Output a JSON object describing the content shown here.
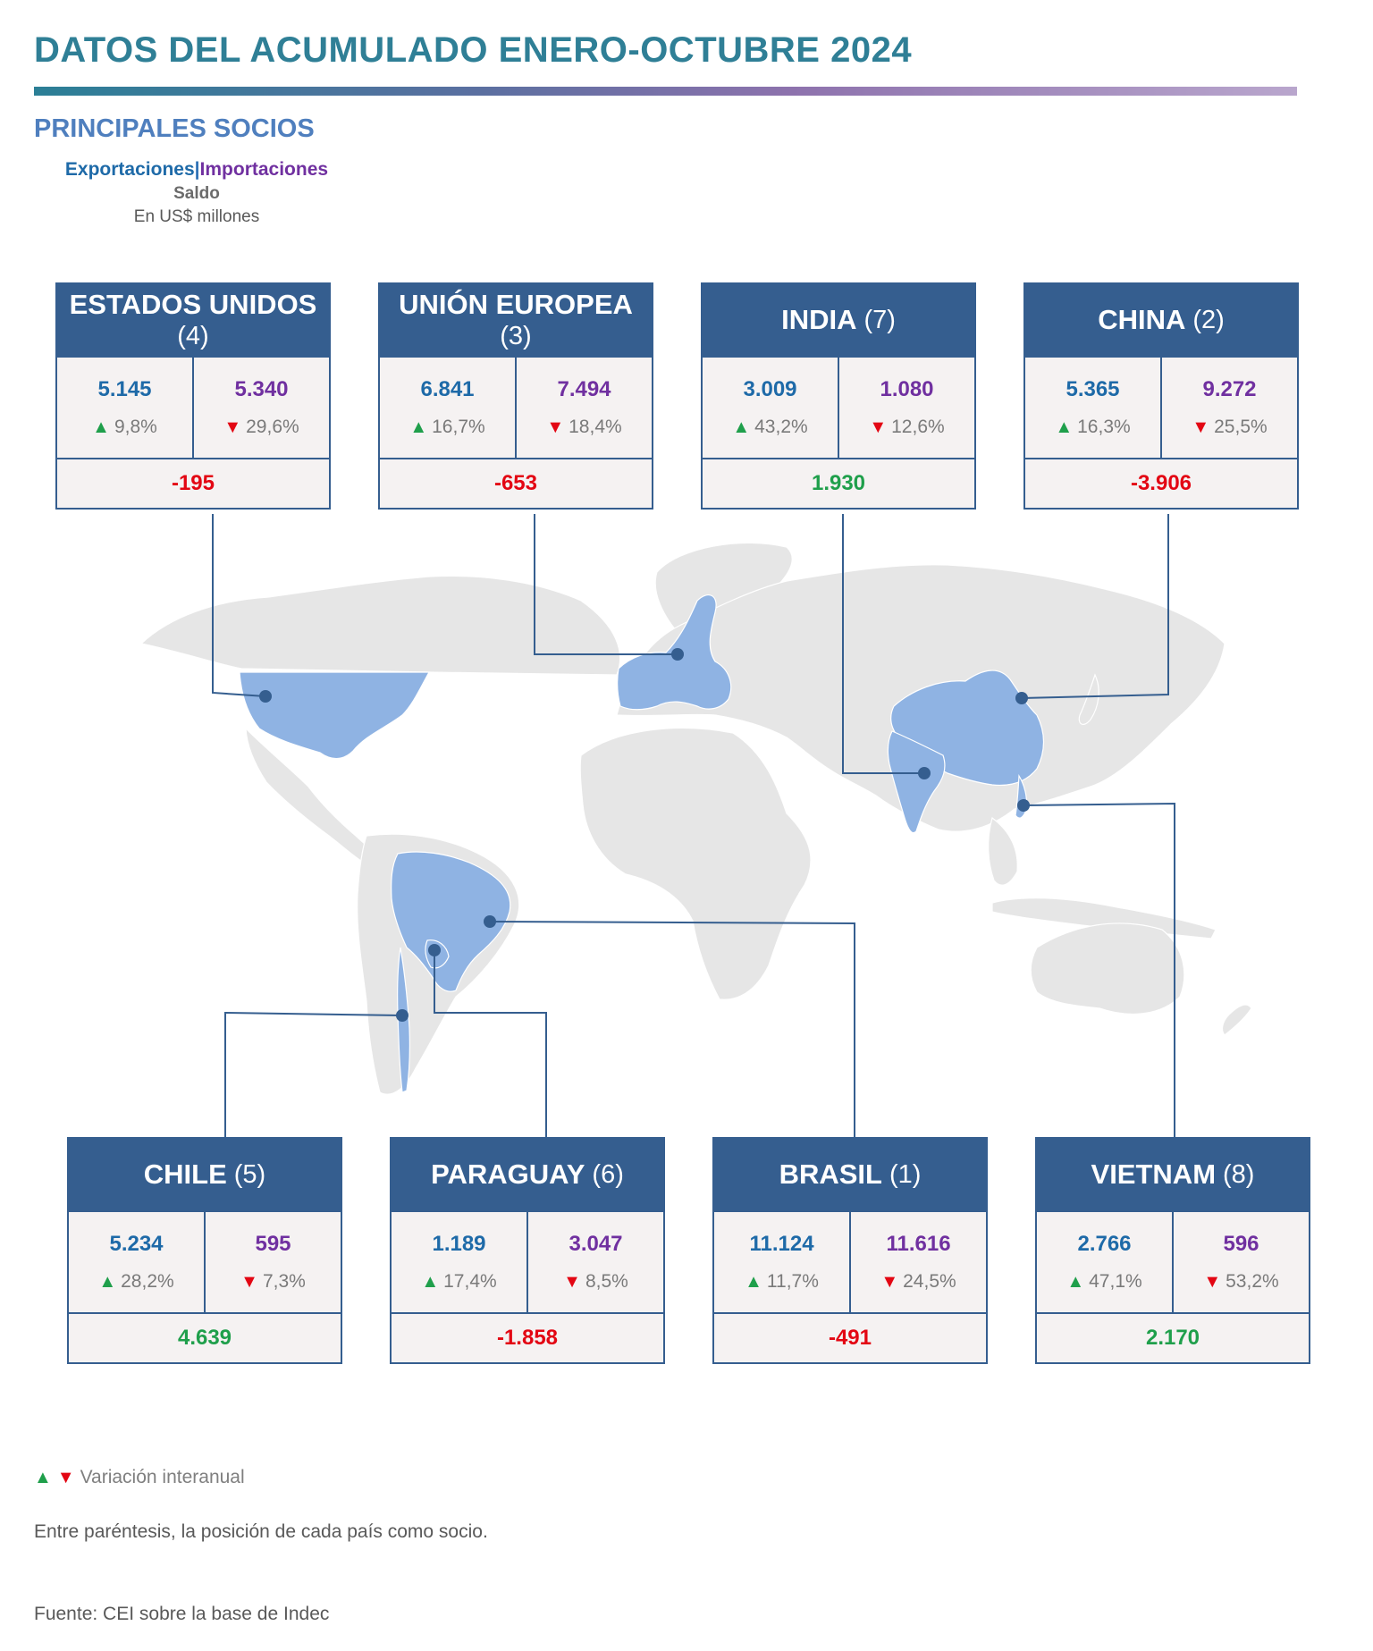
{
  "title": "DATOS DEL ACUMULADO ENERO-OCTUBRE 2024",
  "subtitle": "PRINCIPALES SOCIOS",
  "legend": {
    "exports": "Exportaciones",
    "separator": "|",
    "imports": "Importaciones",
    "balance": "Saldo",
    "unit": "En US$ millones"
  },
  "colors": {
    "header": "#355e8f",
    "exports": "#1e6aa8",
    "imports": "#7030a0",
    "positive": "#1f9f4b",
    "negative": "#e30613",
    "highlighted_country": "#8fb3e3",
    "land": "#e6e6e6"
  },
  "partners": [
    {
      "name": "ESTADOS UNIDOS",
      "position": "(4)",
      "exports": "5.145",
      "exports_var": "9,8%",
      "exports_trend": "up",
      "imports": "5.340",
      "imports_var": "29,6%",
      "imports_trend": "down",
      "balance": "-195",
      "balance_sign": "neg"
    },
    {
      "name": "UNIÓN EUROPEA",
      "position": "(3)",
      "exports": "6.841",
      "exports_var": "16,7%",
      "exports_trend": "up",
      "imports": "7.494",
      "imports_var": "18,4%",
      "imports_trend": "down",
      "balance": "-653",
      "balance_sign": "neg"
    },
    {
      "name": "INDIA",
      "position": "(7)",
      "exports": "3.009",
      "exports_var": "43,2%",
      "exports_trend": "up",
      "imports": "1.080",
      "imports_var": "12,6%",
      "imports_trend": "down",
      "balance": "1.930",
      "balance_sign": "pos"
    },
    {
      "name": "CHINA",
      "position": "(2)",
      "exports": "5.365",
      "exports_var": "16,3%",
      "exports_trend": "up",
      "imports": "9.272",
      "imports_var": "25,5%",
      "imports_trend": "down",
      "balance": "-3.906",
      "balance_sign": "neg"
    },
    {
      "name": "CHILE",
      "position": "(5)",
      "exports": "5.234",
      "exports_var": "28,2%",
      "exports_trend": "up",
      "imports": "595",
      "imports_var": "7,3%",
      "imports_trend": "down",
      "balance": "4.639",
      "balance_sign": "pos"
    },
    {
      "name": "PARAGUAY",
      "position": "(6)",
      "exports": "1.189",
      "exports_var": "17,4%",
      "exports_trend": "up",
      "imports": "3.047",
      "imports_var": "8,5%",
      "imports_trend": "down",
      "balance": "-1.858",
      "balance_sign": "neg"
    },
    {
      "name": "BRASIL",
      "position": "(1)",
      "exports": "11.124",
      "exports_var": "11,7%",
      "exports_trend": "up",
      "imports": "11.616",
      "imports_var": "24,5%",
      "imports_trend": "down",
      "balance": "-491",
      "balance_sign": "neg"
    },
    {
      "name": "VIETNAM",
      "position": "(8)",
      "exports": "2.766",
      "exports_var": "47,1%",
      "exports_trend": "up",
      "imports": "596",
      "imports_var": "53,2%",
      "imports_trend": "down",
      "balance": "2.170",
      "balance_sign": "pos"
    }
  ],
  "footer": {
    "variation_note": "Variación interanual",
    "position_note": "Entre paréntesis, la posición de cada país como socio.",
    "source": "Fuente: CEI sobre la base de Indec"
  }
}
